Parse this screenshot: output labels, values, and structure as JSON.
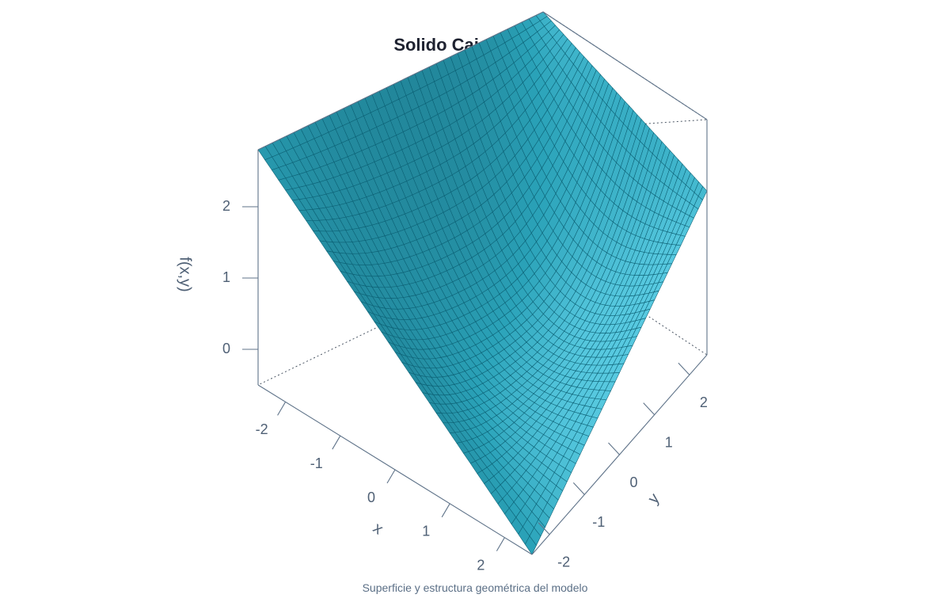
{
  "title": "Solido Caja Integral",
  "caption": "Superficie y estructura geométrica del modelo",
  "colors": {
    "surface_base": "#2aa2b8",
    "surface_dark": "#0b3a48",
    "surface_light": "#63d3ea",
    "mesh": "#0b5f73",
    "axes": "#5f7389",
    "text": "#4f6075",
    "title": "#1e2230"
  },
  "chart_data": {
    "type": "surface",
    "title": "Solido Caja Integral",
    "xlabel": "x",
    "ylabel": "y",
    "zlabel": "f(x,y)",
    "xlim": [
      -2.5,
      2.5
    ],
    "ylim": [
      -2.5,
      2.5
    ],
    "zlim": [
      -0.5,
      2.8
    ],
    "x_ticks": [
      -2,
      -1,
      0,
      1,
      2
    ],
    "y_ticks": [
      -2,
      -1,
      0,
      1,
      2
    ],
    "z_ticks": [
      0,
      1,
      2
    ],
    "x_tick_labels": [
      "-2",
      "-1",
      "0",
      "1",
      "2"
    ],
    "y_tick_labels": [
      "-2",
      "-1",
      "0",
      "1",
      "2"
    ],
    "z_tick_labels": [
      "0",
      "1",
      "2"
    ],
    "grid_resolution": 40,
    "corner_values": [
      {
        "x": -2.5,
        "y": -2.5,
        "z": 2.8
      },
      {
        "x": 2.5,
        "y": -2.5,
        "z": -0.5
      },
      {
        "x": 2.5,
        "y": 2.5,
        "z": 1.8
      },
      {
        "x": -2.5,
        "y": 2.5,
        "z": 2.8
      }
    ],
    "minimum": {
      "x": 2.5,
      "y": -2.5,
      "z": -0.5
    },
    "grid": false,
    "box": true
  }
}
